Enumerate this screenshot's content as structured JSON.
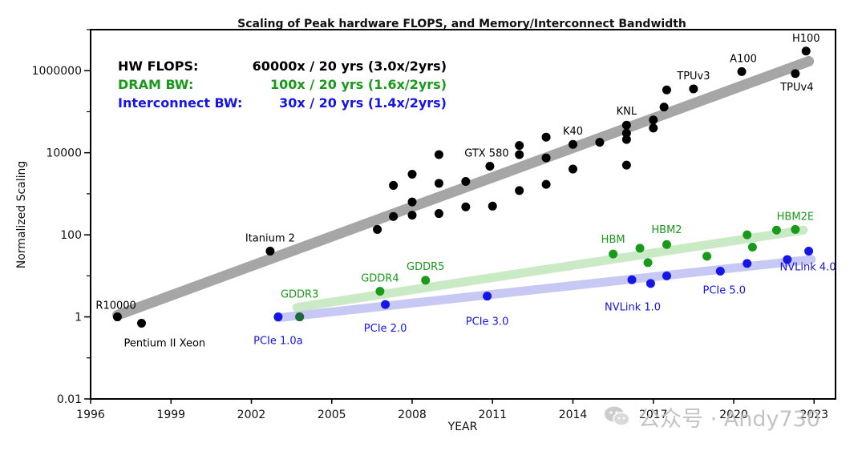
{
  "chart_data": {
    "type": "scatter",
    "title": "Scaling of Peak hardware FLOPS, and Memory/Interconnect Bandwidth",
    "xlabel": "YEAR",
    "ylabel": "Normalized Scaling",
    "xlim": [
      1996,
      2023.8
    ],
    "ylim": [
      0.01,
      10000000
    ],
    "yscale": "log",
    "grid": false,
    "xticks": [
      {
        "value": 1996,
        "label": "1996"
      },
      {
        "value": 1999,
        "label": "1999"
      },
      {
        "value": 2002,
        "label": "2002"
      },
      {
        "value": 2005,
        "label": "2005"
      },
      {
        "value": 2008,
        "label": "2008"
      },
      {
        "value": 2011,
        "label": "2011"
      },
      {
        "value": 2014,
        "label": "2014"
      },
      {
        "value": 2017,
        "label": "2017"
      },
      {
        "value": 2020,
        "label": "2020"
      },
      {
        "value": 2023,
        "label": "2023"
      }
    ],
    "yticks": [
      {
        "value": 0.01,
        "label": "0.01"
      },
      {
        "value": 1,
        "label": "1"
      },
      {
        "value": 100,
        "label": "100"
      },
      {
        "value": 10000,
        "label": "10000"
      },
      {
        "value": 1000000,
        "label": "1000000"
      }
    ],
    "legend": {
      "placement": "top-left",
      "entries": [
        {
          "label": "HW FLOPS:",
          "text": "60000x / 20 yrs (3.0x/2yrs)",
          "color": "#000000"
        },
        {
          "label": "DRAM BW:",
          "text": "100x / 20 yrs (1.6x/2yrs)",
          "color": "#1a9a1a"
        },
        {
          "label": "Interconnect BW:",
          "text": "30x / 20 yrs (1.4x/2yrs)",
          "color": "#1515e6"
        }
      ]
    },
    "series": [
      {
        "name": "HW FLOPS",
        "color": "#000000",
        "trend_color": "#a6a6a6",
        "trend": [
          [
            1997,
            1.1
          ],
          [
            2022.8,
            1700000
          ]
        ],
        "points": [
          [
            1997.0,
            1.0
          ],
          [
            1997.9,
            0.7
          ],
          [
            2002.7,
            40
          ],
          [
            2006.7,
            135
          ],
          [
            2007.3,
            280
          ],
          [
            2007.3,
            1600
          ],
          [
            2008.0,
            300
          ],
          [
            2008.0,
            630
          ],
          [
            2008.0,
            3000
          ],
          [
            2009.0,
            330
          ],
          [
            2009.0,
            1800
          ],
          [
            2009.0,
            9000
          ],
          [
            2010.0,
            480
          ],
          [
            2010.0,
            2000
          ],
          [
            2010.9,
            4700
          ],
          [
            2011.0,
            500
          ],
          [
            2012.0,
            1200
          ],
          [
            2012.0,
            9000
          ],
          [
            2012.0,
            15000
          ],
          [
            2013.0,
            1700
          ],
          [
            2013.0,
            7500
          ],
          [
            2013.0,
            24000
          ],
          [
            2014.0,
            4000
          ],
          [
            2014.0,
            16000
          ],
          [
            2015.0,
            18000
          ],
          [
            2016.0,
            5000
          ],
          [
            2016.0,
            21000
          ],
          [
            2016.0,
            30000
          ],
          [
            2016.0,
            47000
          ],
          [
            2017.0,
            40000
          ],
          [
            2017.0,
            63000
          ],
          [
            2017.4,
            130000
          ],
          [
            2017.5,
            340000
          ],
          [
            2018.5,
            360000
          ],
          [
            2020.3,
            950000
          ],
          [
            2022.3,
            850000
          ],
          [
            2022.7,
            3000000
          ]
        ]
      },
      {
        "name": "DRAM BW",
        "color": "#1a9a1a",
        "trend_color": "#c8e8c2",
        "trend": [
          [
            2003.7,
            1.7
          ],
          [
            2022.6,
            130
          ]
        ],
        "points": [
          [
            2003.8,
            1.0
          ],
          [
            2006.8,
            4.2
          ],
          [
            2008.5,
            7.8
          ],
          [
            2015.5,
            34
          ],
          [
            2016.5,
            47
          ],
          [
            2016.8,
            21
          ],
          [
            2017.5,
            58
          ],
          [
            2019.0,
            30
          ],
          [
            2020.5,
            100
          ],
          [
            2020.7,
            50
          ],
          [
            2021.6,
            130
          ],
          [
            2022.3,
            135
          ]
        ]
      },
      {
        "name": "Interconnect BW",
        "color": "#1515e6",
        "trend_color": "#c6c6f4",
        "trend": [
          [
            2003.0,
            0.95
          ],
          [
            2022.9,
            25
          ]
        ],
        "points": [
          [
            2003.0,
            1.0
          ],
          [
            2007.0,
            2.0
          ],
          [
            2010.8,
            3.2
          ],
          [
            2016.2,
            8.0
          ],
          [
            2016.9,
            6.5
          ],
          [
            2017.5,
            10.0
          ],
          [
            2020.5,
            20
          ],
          [
            2022.0,
            25
          ],
          [
            2022.8,
            40
          ],
          [
            2019.5,
            13
          ]
        ]
      }
    ],
    "annotations": [
      {
        "text": "R10000",
        "x": 1997.0,
        "y": 1.0,
        "color": "#000000"
      },
      {
        "text": "Pentium II Xeon",
        "x": 1997.9,
        "y": 0.7,
        "color": "#000000"
      },
      {
        "text": "Itanium 2",
        "x": 2002.7,
        "y": 40,
        "color": "#000000"
      },
      {
        "text": "GTX 580",
        "x": 2010.9,
        "y": 4700,
        "color": "#000000"
      },
      {
        "text": "K40",
        "x": 2014.0,
        "y": 16000,
        "color": "#000000"
      },
      {
        "text": "KNL",
        "x": 2016.0,
        "y": 47000,
        "color": "#000000"
      },
      {
        "text": "TPUv3",
        "x": 2018.5,
        "y": 360000,
        "color": "#000000"
      },
      {
        "text": "A100",
        "x": 2020.3,
        "y": 950000,
        "color": "#000000"
      },
      {
        "text": "H100",
        "x": 2022.7,
        "y": 3000000,
        "color": "#000000"
      },
      {
        "text": "TPUv4",
        "x": 2022.3,
        "y": 850000,
        "color": "#000000"
      },
      {
        "text": "GDDR3",
        "x": 2003.8,
        "y": 1.0,
        "color": "#1a9a1a"
      },
      {
        "text": "GDDR4",
        "x": 2006.8,
        "y": 4.2,
        "color": "#1a9a1a"
      },
      {
        "text": "GDDR5",
        "x": 2008.5,
        "y": 7.8,
        "color": "#1a9a1a"
      },
      {
        "text": "HBM",
        "x": 2015.5,
        "y": 34,
        "color": "#1a9a1a"
      },
      {
        "text": "HBM2",
        "x": 2017.5,
        "y": 58,
        "color": "#1a9a1a"
      },
      {
        "text": "HBM2E",
        "x": 2022.3,
        "y": 135,
        "color": "#1a9a1a"
      },
      {
        "text": "PCIe 1.0a",
        "x": 2003.0,
        "y": 1.0,
        "color": "#1515e6"
      },
      {
        "text": "PCIe 2.0",
        "x": 2007.0,
        "y": 2.0,
        "color": "#1515e6"
      },
      {
        "text": "PCIe 3.0",
        "x": 2010.8,
        "y": 3.2,
        "color": "#1515e6"
      },
      {
        "text": "NVLink 1.0",
        "x": 2016.2,
        "y": 8.0,
        "color": "#1515e6"
      },
      {
        "text": "PCIe 5.0",
        "x": 2019.5,
        "y": 13,
        "color": "#1515e6"
      },
      {
        "text": "NVLink 4.0",
        "x": 2022.8,
        "y": 40,
        "color": "#1515e6"
      }
    ]
  },
  "watermark": {
    "text": "公众号 · Andy730",
    "icon": "wechat-icon"
  }
}
